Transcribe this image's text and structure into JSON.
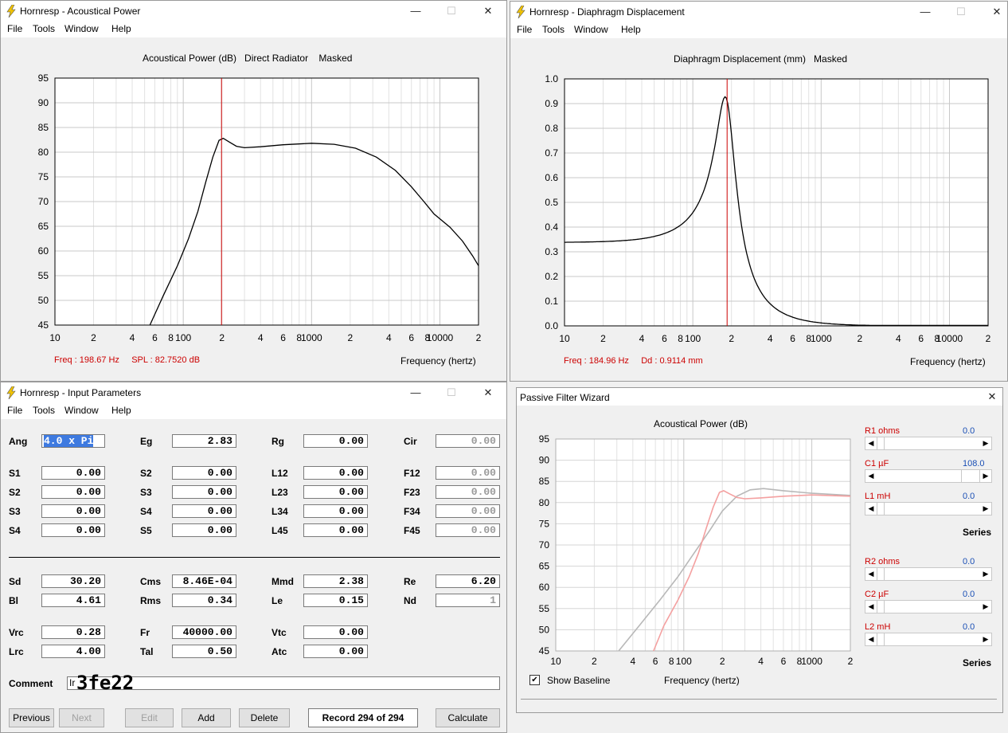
{
  "menu": {
    "file": "File",
    "tools": "Tools",
    "window": "Window",
    "help": "Help"
  },
  "win_power": {
    "title": "Hornresp - Acoustical Power",
    "plot_title": "Acoustical Power (dB)   Direct Radiator    Masked",
    "readout": "Freq : 198.67 Hz     SPL : 82.7520 dB",
    "xlabel": "Frequency (hertz)",
    "yticks": [
      "95",
      "90",
      "85",
      "80",
      "75",
      "70",
      "65",
      "60",
      "55",
      "50",
      "45"
    ],
    "xticks": [
      "10",
      "2",
      "4",
      "6",
      "8",
      "100",
      "2",
      "4",
      "6",
      "8",
      "1000",
      "2",
      "4",
      "6",
      "8",
      "10000",
      "2"
    ]
  },
  "win_disp": {
    "title": "Hornresp - Diaphragm Displacement",
    "plot_title": "Diaphragm Displacement (mm)   Masked",
    "readout": "Freq : 184.96 Hz     Dd : 0.9114 mm",
    "xlabel": "Frequency (hertz)",
    "yticks": [
      "1.0",
      "0.9",
      "0.8",
      "0.7",
      "0.6",
      "0.5",
      "0.4",
      "0.3",
      "0.2",
      "0.1",
      "0.0"
    ],
    "xticks": [
      "10",
      "2",
      "4",
      "6",
      "8",
      "100",
      "2",
      "4",
      "6",
      "8",
      "1000",
      "2",
      "4",
      "6",
      "8",
      "10000",
      "2"
    ]
  },
  "win_input": {
    "title": "Hornresp - Input Parameters",
    "row1": [
      [
        "Ang",
        "4.0 x Pi"
      ],
      [
        "Eg",
        "2.83"
      ],
      [
        "Rg",
        "0.00"
      ],
      [
        "Cir",
        "0.00"
      ]
    ],
    "s_left": [
      [
        "S1",
        "0.00"
      ],
      [
        "S2",
        "0.00"
      ],
      [
        "S3",
        "0.00"
      ],
      [
        "S4",
        "0.00"
      ]
    ],
    "s_mid": [
      [
        "S2",
        "0.00"
      ],
      [
        "S3",
        "0.00"
      ],
      [
        "S4",
        "0.00"
      ],
      [
        "S5",
        "0.00"
      ]
    ],
    "l_col": [
      [
        "L12",
        "0.00"
      ],
      [
        "L23",
        "0.00"
      ],
      [
        "L34",
        "0.00"
      ],
      [
        "L45",
        "0.00"
      ]
    ],
    "f_col": [
      [
        "F12",
        "0.00"
      ],
      [
        "F23",
        "0.00"
      ],
      [
        "F34",
        "0.00"
      ],
      [
        "F45",
        "0.00"
      ]
    ],
    "driver": [
      [
        "Sd",
        "30.20"
      ],
      [
        "Cms",
        "8.46E-04"
      ],
      [
        "Mmd",
        "2.38"
      ],
      [
        "Re",
        "6.20"
      ],
      [
        "Bl",
        "4.61"
      ],
      [
        "Rms",
        "0.34"
      ],
      [
        "Le",
        "0.15"
      ],
      [
        "Nd",
        "1"
      ]
    ],
    "vrc": [
      [
        "Vrc",
        "0.28"
      ],
      [
        "Fr",
        "40000.00"
      ],
      [
        "Vtc",
        "0.00"
      ],
      [
        "Lrc",
        "4.00"
      ],
      [
        "Tal",
        "0.50"
      ],
      [
        "Atc",
        "0.00"
      ]
    ],
    "comment_label": "Comment",
    "comment_value": "Ir",
    "overlay_text": "3fe22",
    "buttons": {
      "previous": "Previous",
      "next": "Next",
      "edit": "Edit",
      "add": "Add",
      "delete": "Delete",
      "record": "Record 294 of 294",
      "calculate": "Calculate"
    }
  },
  "win_filter": {
    "title": "Passive Filter Wizard",
    "plot_title": "Acoustical Power (dB)",
    "xlabel": "Frequency (hertz)",
    "show_baseline": "Show Baseline",
    "show_baseline_checked": true,
    "yticks": [
      "95",
      "90",
      "85",
      "80",
      "75",
      "70",
      "65",
      "60",
      "55",
      "50",
      "45"
    ],
    "xticks": [
      "10",
      "2",
      "4",
      "6",
      "8",
      "100",
      "2",
      "4",
      "6",
      "8",
      "1000",
      "2"
    ],
    "sliders1": [
      {
        "label": "R1  ohms",
        "value": "0.0",
        "level": 0
      },
      {
        "label": "C1  µF",
        "value": "108.0",
        "level": 0.95
      },
      {
        "label": "L1  mH",
        "value": "0.0",
        "level": 0
      }
    ],
    "series1": "Series",
    "sliders2": [
      {
        "label": "R2  ohms",
        "value": "0.0",
        "level": 0
      },
      {
        "label": "C2  µF",
        "value": "0.0",
        "level": 0
      },
      {
        "label": "L2  mH",
        "value": "0.0",
        "level": 0
      }
    ],
    "series2": "Series"
  },
  "colors": {
    "marker": "#cc0000",
    "curve": "#000000",
    "filtered": "#f4a0a0",
    "baseline": "#b8b8b8",
    "select_bg": "#3e7ae0"
  }
}
